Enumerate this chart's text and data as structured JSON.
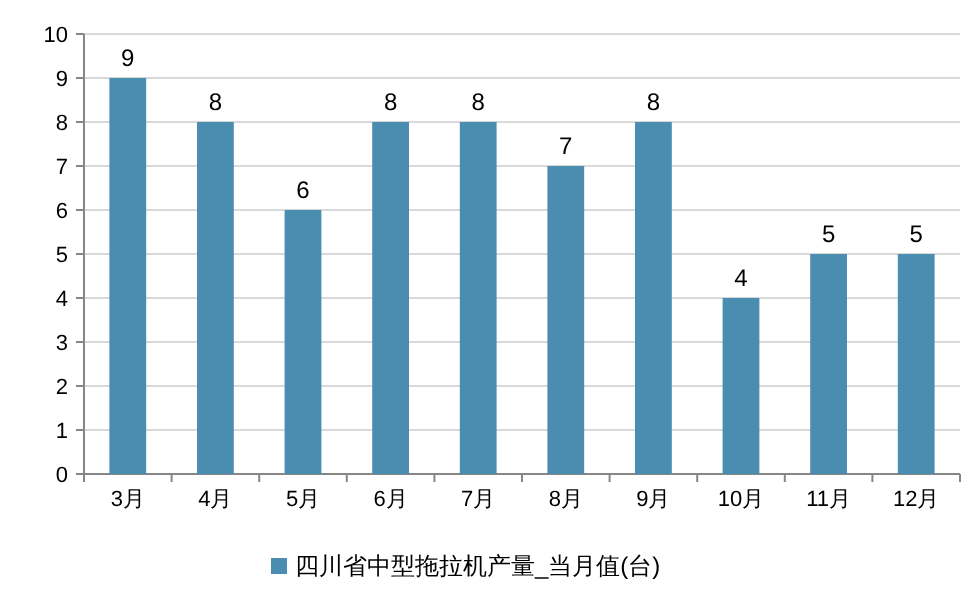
{
  "chart_data": {
    "type": "bar",
    "categories": [
      "3月",
      "4月",
      "5月",
      "6月",
      "7月",
      "8月",
      "9月",
      "10月",
      "11月",
      "12月"
    ],
    "series": [
      {
        "name": "四川省中型拖拉机产量_当月值(台)",
        "color": "#4a8db0",
        "values": [
          9,
          8,
          6,
          8,
          8,
          7,
          8,
          4,
          5,
          5
        ]
      }
    ],
    "ylim": [
      0,
      10
    ],
    "yticks": [
      0,
      1,
      2,
      3,
      4,
      5,
      6,
      7,
      8,
      9,
      10
    ],
    "grid": "y",
    "legend": "bottom",
    "data_labels": true
  }
}
